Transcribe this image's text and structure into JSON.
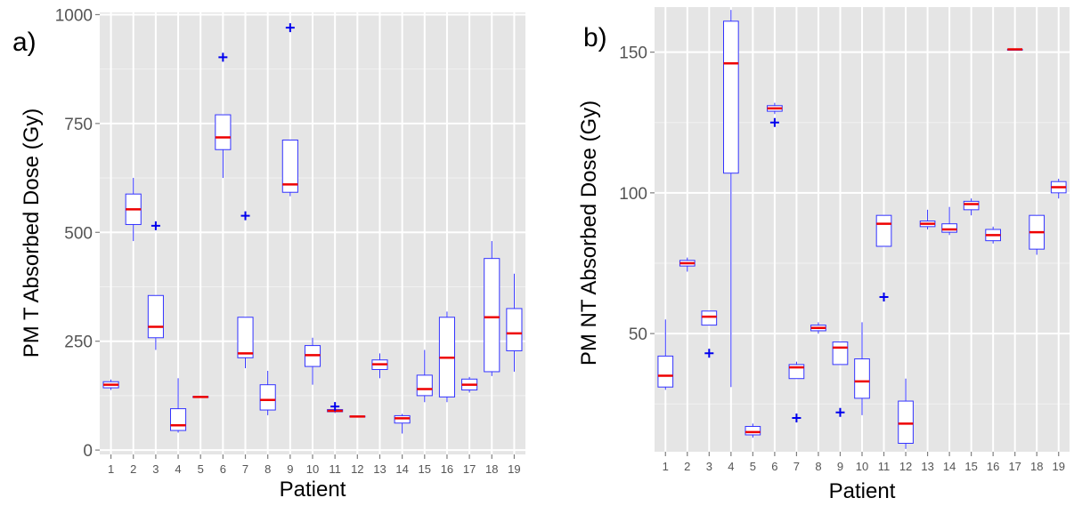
{
  "chart_data": [
    {
      "type": "box",
      "panel_label": "a)",
      "xlabel": "Patient",
      "ylabel": "PM T Absorbed Dose (Gy)",
      "ylim": [
        -10,
        1005
      ],
      "yticks": [
        0,
        250,
        500,
        750,
        1000
      ],
      "grid": true,
      "box_color": "#3333ff",
      "median_color": "#ee0000",
      "outlier_color": "#0000ee",
      "plot_background": "#e5e5e5",
      "categories": [
        "1",
        "2",
        "3",
        "4",
        "5",
        "6",
        "7",
        "8",
        "9",
        "10",
        "11",
        "12",
        "13",
        "14",
        "15",
        "16",
        "17",
        "18",
        "19"
      ],
      "boxes": [
        {
          "min": 138,
          "q1": 143,
          "median": 150,
          "q3": 157,
          "max": 162,
          "outliers": []
        },
        {
          "min": 480,
          "q1": 518,
          "median": 553,
          "q3": 588,
          "max": 625,
          "outliers": []
        },
        {
          "min": 230,
          "q1": 258,
          "median": 283,
          "q3": 355,
          "max": 355,
          "outliers": [
            515
          ]
        },
        {
          "min": 40,
          "q1": 45,
          "median": 57,
          "q3": 95,
          "max": 165,
          "outliers": []
        },
        {
          "min": 120,
          "q1": 121,
          "median": 122,
          "q3": 123,
          "max": 124,
          "outliers": []
        },
        {
          "min": 625,
          "q1": 690,
          "median": 718,
          "q3": 770,
          "max": 770,
          "outliers": [
            902
          ]
        },
        {
          "min": 188,
          "q1": 212,
          "median": 222,
          "q3": 305,
          "max": 305,
          "outliers": [
            538
          ]
        },
        {
          "min": 80,
          "q1": 92,
          "median": 115,
          "q3": 150,
          "max": 182,
          "outliers": []
        },
        {
          "min": 583,
          "q1": 592,
          "median": 610,
          "q3": 712,
          "max": 712,
          "outliers": [
            970
          ]
        },
        {
          "min": 150,
          "q1": 192,
          "median": 218,
          "q3": 240,
          "max": 258,
          "outliers": []
        },
        {
          "min": 85,
          "q1": 88,
          "median": 90,
          "q3": 93,
          "max": 95,
          "outliers": [
            100
          ]
        },
        {
          "min": 75,
          "q1": 76,
          "median": 77,
          "q3": 78,
          "max": 79,
          "outliers": []
        },
        {
          "min": 165,
          "q1": 185,
          "median": 197,
          "q3": 207,
          "max": 222,
          "outliers": []
        },
        {
          "min": 38,
          "q1": 62,
          "median": 73,
          "q3": 79,
          "max": 83,
          "outliers": []
        },
        {
          "min": 110,
          "q1": 125,
          "median": 140,
          "q3": 172,
          "max": 230,
          "outliers": []
        },
        {
          "min": 110,
          "q1": 122,
          "median": 212,
          "q3": 305,
          "max": 318,
          "outliers": []
        },
        {
          "min": 132,
          "q1": 138,
          "median": 150,
          "q3": 163,
          "max": 168,
          "outliers": []
        },
        {
          "min": 170,
          "q1": 180,
          "median": 305,
          "q3": 440,
          "max": 480,
          "outliers": []
        },
        {
          "min": 180,
          "q1": 228,
          "median": 268,
          "q3": 325,
          "max": 405,
          "outliers": []
        }
      ]
    },
    {
      "type": "box",
      "panel_label": "b)",
      "xlabel": "Patient",
      "ylabel": "PM NT Absorbed Dose (Gy)",
      "ylim": [
        8,
        166
      ],
      "yticks": [
        50,
        100,
        150
      ],
      "grid": true,
      "box_color": "#3333ff",
      "median_color": "#ee0000",
      "outlier_color": "#0000ee",
      "plot_background": "#e5e5e5",
      "categories": [
        "1",
        "2",
        "3",
        "4",
        "5",
        "6",
        "7",
        "8",
        "9",
        "10",
        "11",
        "12",
        "13",
        "14",
        "15",
        "16",
        "17",
        "18",
        "19"
      ],
      "boxes": [
        {
          "min": 30,
          "q1": 31,
          "median": 35,
          "q3": 42,
          "max": 55,
          "outliers": []
        },
        {
          "min": 72,
          "q1": 74,
          "median": 75,
          "q3": 76,
          "max": 77,
          "outliers": []
        },
        {
          "min": 53,
          "q1": 53,
          "median": 56,
          "q3": 58,
          "max": 58,
          "outliers": [
            43
          ]
        },
        {
          "min": 31,
          "q1": 107,
          "median": 146,
          "q3": 161,
          "max": 165,
          "outliers": []
        },
        {
          "min": 13,
          "q1": 14,
          "median": 15,
          "q3": 17,
          "max": 18,
          "outliers": []
        },
        {
          "min": 128,
          "q1": 129,
          "median": 130,
          "q3": 131,
          "max": 132,
          "outliers": [
            125
          ]
        },
        {
          "min": 34,
          "q1": 34,
          "median": 38,
          "q3": 39,
          "max": 40,
          "outliers": [
            20
          ]
        },
        {
          "min": 50,
          "q1": 51,
          "median": 52,
          "q3": 53,
          "max": 54,
          "outliers": []
        },
        {
          "min": 39,
          "q1": 39,
          "median": 45,
          "q3": 47,
          "max": 47,
          "outliers": [
            22
          ]
        },
        {
          "min": 21,
          "q1": 27,
          "median": 33,
          "q3": 41,
          "max": 54,
          "outliers": []
        },
        {
          "min": 81,
          "q1": 81,
          "median": 89,
          "q3": 92,
          "max": 92,
          "outliers": [
            63
          ]
        },
        {
          "min": 9,
          "q1": 11,
          "median": 18,
          "q3": 26,
          "max": 34,
          "outliers": []
        },
        {
          "min": 87,
          "q1": 88,
          "median": 89,
          "q3": 90,
          "max": 94,
          "outliers": []
        },
        {
          "min": 85,
          "q1": 86,
          "median": 87,
          "q3": 89,
          "max": 95,
          "outliers": []
        },
        {
          "min": 92,
          "q1": 94,
          "median": 96,
          "q3": 97,
          "max": 98,
          "outliers": []
        },
        {
          "min": 82,
          "q1": 83,
          "median": 85,
          "q3": 87,
          "max": 88,
          "outliers": []
        },
        {
          "min": 151,
          "q1": 151,
          "median": 151,
          "q3": 151,
          "max": 151,
          "outliers": []
        },
        {
          "min": 78,
          "q1": 80,
          "median": 86,
          "q3": 92,
          "max": 92,
          "outliers": []
        },
        {
          "min": 98,
          "q1": 100,
          "median": 102,
          "q3": 104,
          "max": 105,
          "outliers": []
        }
      ]
    }
  ]
}
